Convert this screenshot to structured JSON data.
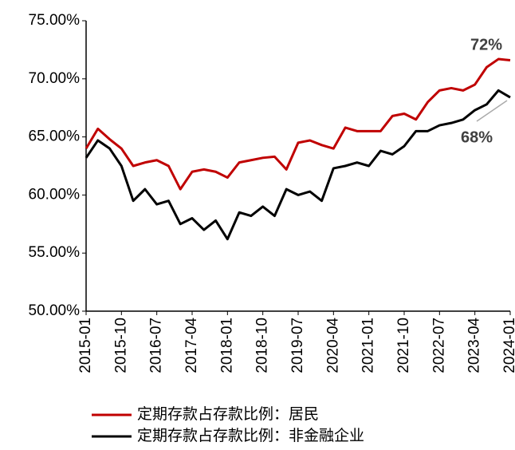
{
  "chart_data": {
    "type": "line",
    "x": [
      "2015-01",
      "2015-04",
      "2015-07",
      "2015-10",
      "2016-01",
      "2016-04",
      "2016-07",
      "2016-10",
      "2017-01",
      "2017-04",
      "2017-07",
      "2017-10",
      "2018-01",
      "2018-04",
      "2018-07",
      "2018-10",
      "2019-01",
      "2019-04",
      "2019-07",
      "2019-10",
      "2020-01",
      "2020-04",
      "2020-07",
      "2020-10",
      "2021-01",
      "2021-04",
      "2021-07",
      "2021-10",
      "2022-01",
      "2022-04",
      "2022-07",
      "2022-10",
      "2023-01",
      "2023-04",
      "2023-07",
      "2023-10",
      "2024-01"
    ],
    "series": [
      {
        "name": "定期存款占存款比例：居民",
        "color": "#c00000",
        "values": [
          64.0,
          65.7,
          64.8,
          64.0,
          62.5,
          62.8,
          63.0,
          62.5,
          60.5,
          62.0,
          62.2,
          62.0,
          61.5,
          62.8,
          63.0,
          63.2,
          63.3,
          62.2,
          64.5,
          64.7,
          64.3,
          64.0,
          65.8,
          65.5,
          65.5,
          65.5,
          66.8,
          67.0,
          66.5,
          68.0,
          69.0,
          69.2,
          69.0,
          69.5,
          71.0,
          71.7,
          71.6
        ]
      },
      {
        "name": "定期存款占存款比例：非金融企业",
        "color": "#000000",
        "values": [
          63.2,
          64.7,
          64.0,
          62.5,
          59.5,
          60.5,
          59.2,
          59.5,
          57.5,
          58.0,
          57.0,
          57.8,
          56.2,
          58.5,
          58.2,
          59.0,
          58.2,
          60.5,
          60.0,
          60.3,
          59.5,
          62.3,
          62.5,
          62.8,
          62.5,
          63.8,
          63.5,
          64.2,
          65.5,
          65.5,
          66.0,
          66.2,
          66.5,
          67.3,
          67.8,
          69.0,
          68.4
        ]
      }
    ],
    "ylim": [
      50,
      75
    ],
    "yticks": [
      {
        "value": 50,
        "label": "50.00%"
      },
      {
        "value": 55,
        "label": "55.00%"
      },
      {
        "value": 60,
        "label": "60.00%"
      },
      {
        "value": 65,
        "label": "65.00%"
      },
      {
        "value": 70,
        "label": "70.00%"
      },
      {
        "value": 75,
        "label": "75.00%"
      }
    ],
    "xticks": [
      "2015-01",
      "2015-10",
      "2016-07",
      "2017-04",
      "2018-01",
      "2018-10",
      "2019-07",
      "2020-04",
      "2021-01",
      "2021-10",
      "2022-07",
      "2023-04",
      "2024-01"
    ],
    "annotations": [
      "72%",
      "68%"
    ],
    "grid": false,
    "legend": "bottom"
  }
}
